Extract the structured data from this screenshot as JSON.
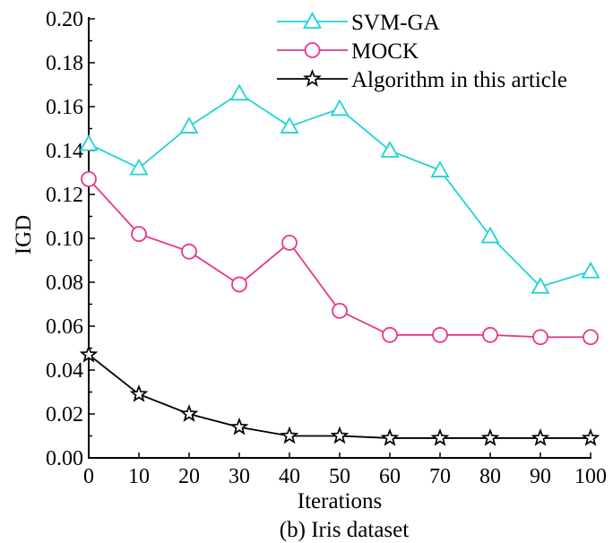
{
  "chart_data": {
    "type": "line",
    "title": "",
    "caption": "(b) Iris dataset",
    "xlabel": "Iterations",
    "ylabel": "IGD",
    "x": [
      0,
      10,
      20,
      30,
      40,
      50,
      60,
      70,
      80,
      90,
      100
    ],
    "xticks": [
      "0",
      "10",
      "20",
      "30",
      "40",
      "50",
      "60",
      "70",
      "80",
      "90",
      "100"
    ],
    "yticks": [
      "0.00",
      "0.02",
      "0.04",
      "0.06",
      "0.08",
      "0.10",
      "0.12",
      "0.14",
      "0.16",
      "0.18",
      "0.20"
    ],
    "xlim": [
      0,
      100
    ],
    "ylim": [
      0,
      0.2
    ],
    "grid": false,
    "legend_position": "top-right",
    "series": [
      {
        "name": "SVM-GA",
        "color": "#22d3d3",
        "marker": "triangle",
        "values": [
          0.143,
          0.132,
          0.151,
          0.166,
          0.151,
          0.159,
          0.14,
          0.131,
          0.101,
          0.078,
          0.085
        ]
      },
      {
        "name": "MOCK",
        "color": "#e8368a",
        "marker": "circle",
        "values": [
          0.127,
          0.102,
          0.094,
          0.079,
          0.098,
          0.067,
          0.056,
          0.056,
          0.056,
          0.055,
          0.055
        ]
      },
      {
        "name": "Algorithm in this article",
        "color": "#000000",
        "marker": "star",
        "values": [
          0.047,
          0.029,
          0.02,
          0.014,
          0.01,
          0.01,
          0.009,
          0.009,
          0.009,
          0.009,
          0.009
        ]
      }
    ]
  }
}
